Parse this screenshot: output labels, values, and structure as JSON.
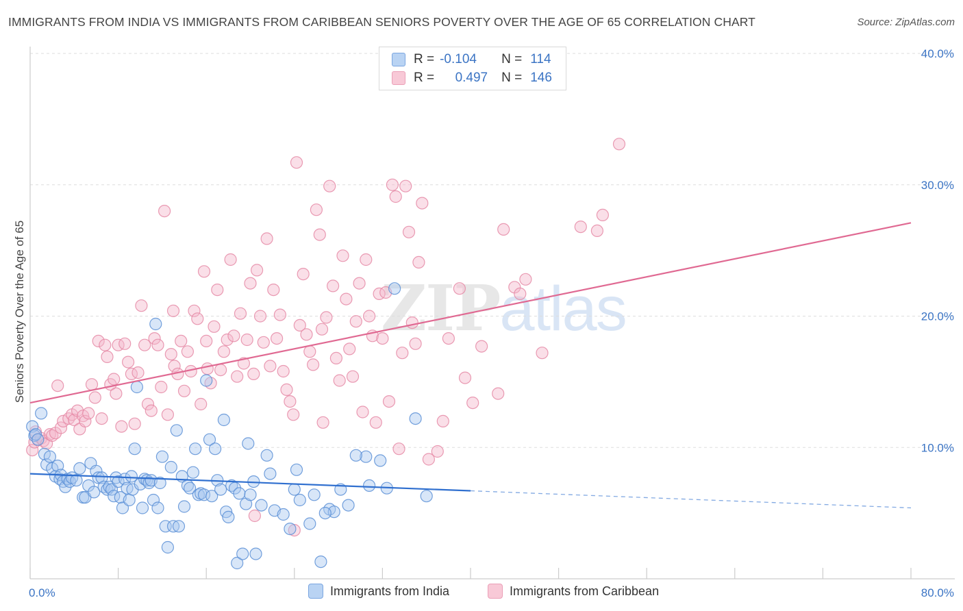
{
  "header": {
    "title": "IMMIGRANTS FROM INDIA VS IMMIGRANTS FROM CARIBBEAN SENIORS POVERTY OVER THE AGE OF 65 CORRELATION CHART",
    "source": "Source: ZipAtlas.com"
  },
  "watermark": {
    "zip": "ZIP",
    "atlas": "atlas"
  },
  "legend": {
    "rows": [
      {
        "r_label": "R =",
        "r_value": "-0.104",
        "n_label": "N =",
        "n_value": "114",
        "color": "#a8c8f0"
      },
      {
        "r_label": "R =",
        "r_value": "0.497",
        "n_label": "N =",
        "n_value": "146",
        "color": "#f5b8cb"
      }
    ]
  },
  "bottom_legend": {
    "india": "Immigrants from India",
    "caribbean": "Immigrants from Caribbean"
  },
  "colors": {
    "india_fill": "#a8c8f0",
    "india_stroke": "#5b8fd6",
    "india_line": "#2f6fcf",
    "carib_fill": "#f5b8cb",
    "carib_stroke": "#e58aa6",
    "carib_line": "#e06992",
    "tick_text": "#3b74c4",
    "grid": "#dddddd"
  },
  "chart_data": {
    "type": "scatter",
    "title": "IMMIGRANTS FROM INDIA VS IMMIGRANTS FROM CARIBBEAN SENIORS POVERTY OVER THE AGE OF 65 CORRELATION CHART",
    "xlabel": "",
    "ylabel": "Seniors Poverty Over the Age of 65",
    "xlim": [
      0,
      80
    ],
    "ylim": [
      0,
      40
    ],
    "x_tick_labels": [
      {
        "value": 0,
        "label": "0.0%"
      },
      {
        "value": 80,
        "label": "80.0%"
      }
    ],
    "y_tick_labels": [
      {
        "value": 10,
        "label": "10.0%"
      },
      {
        "value": 20,
        "label": "20.0%"
      },
      {
        "value": 30,
        "label": "30.0%"
      },
      {
        "value": 40,
        "label": "40.0%"
      }
    ],
    "grid": true,
    "legend_position": "top-center",
    "series": [
      {
        "name": "Immigrants from India",
        "r": -0.104,
        "n": 114,
        "trend": {
          "x0": 0,
          "y0": 8.0,
          "x1": 40,
          "y1": 6.7,
          "dash_x1": 80,
          "dash_y1": 5.4
        },
        "points": [
          [
            0.2,
            11.6
          ],
          [
            0.4,
            10.9
          ],
          [
            0.5,
            11.0
          ],
          [
            0.7,
            10.6
          ],
          [
            1.0,
            12.6
          ],
          [
            1.3,
            9.5
          ],
          [
            1.5,
            8.7
          ],
          [
            1.8,
            9.3
          ],
          [
            2.0,
            8.4
          ],
          [
            2.3,
            7.8
          ],
          [
            2.5,
            8.6
          ],
          [
            2.7,
            7.6
          ],
          [
            2.8,
            7.9
          ],
          [
            3.0,
            7.4
          ],
          [
            3.2,
            7.0
          ],
          [
            3.4,
            7.6
          ],
          [
            3.6,
            7.4
          ],
          [
            3.8,
            7.7
          ],
          [
            4.2,
            7.5
          ],
          [
            4.5,
            8.4
          ],
          [
            4.8,
            6.2
          ],
          [
            5.0,
            6.2
          ],
          [
            5.3,
            7.1
          ],
          [
            5.5,
            8.8
          ],
          [
            5.8,
            6.6
          ],
          [
            6.0,
            8.2
          ],
          [
            6.2,
            7.7
          ],
          [
            6.5,
            7.7
          ],
          [
            6.7,
            7.0
          ],
          [
            7.0,
            6.8
          ],
          [
            7.2,
            7.0
          ],
          [
            7.4,
            6.8
          ],
          [
            7.6,
            6.3
          ],
          [
            7.8,
            7.7
          ],
          [
            8.0,
            7.4
          ],
          [
            8.2,
            6.2
          ],
          [
            8.4,
            5.4
          ],
          [
            8.6,
            7.6
          ],
          [
            8.8,
            6.9
          ],
          [
            9.0,
            6.0
          ],
          [
            9.3,
            6.8
          ],
          [
            9.5,
            9.9
          ],
          [
            9.7,
            14.6
          ],
          [
            10.0,
            7.2
          ],
          [
            10.2,
            5.4
          ],
          [
            10.4,
            7.6
          ],
          [
            10.6,
            7.5
          ],
          [
            10.8,
            7.3
          ],
          [
            11.0,
            7.5
          ],
          [
            11.2,
            6.0
          ],
          [
            11.4,
            19.4
          ],
          [
            11.6,
            5.4
          ],
          [
            11.8,
            7.3
          ],
          [
            12.0,
            9.3
          ],
          [
            12.3,
            4.0
          ],
          [
            12.5,
            2.4
          ],
          [
            12.8,
            8.5
          ],
          [
            13.0,
            4.0
          ],
          [
            13.3,
            11.3
          ],
          [
            13.5,
            4.0
          ],
          [
            13.8,
            7.8
          ],
          [
            14.0,
            5.5
          ],
          [
            14.3,
            7.1
          ],
          [
            14.5,
            6.9
          ],
          [
            14.8,
            8.1
          ],
          [
            15.0,
            9.9
          ],
          [
            15.3,
            6.4
          ],
          [
            15.5,
            6.5
          ],
          [
            15.8,
            6.4
          ],
          [
            16.0,
            15.1
          ],
          [
            16.3,
            10.6
          ],
          [
            16.5,
            6.3
          ],
          [
            16.8,
            9.9
          ],
          [
            17.0,
            7.5
          ],
          [
            17.3,
            6.8
          ],
          [
            17.6,
            12.1
          ],
          [
            17.8,
            5.1
          ],
          [
            18.0,
            4.7
          ],
          [
            18.3,
            7.1
          ],
          [
            18.6,
            6.9
          ],
          [
            18.8,
            1.2
          ],
          [
            19.0,
            6.5
          ],
          [
            19.3,
            1.9
          ],
          [
            19.6,
            5.7
          ],
          [
            20.0,
            6.4
          ],
          [
            20.3,
            7.4
          ],
          [
            20.5,
            1.9
          ],
          [
            21.0,
            5.6
          ],
          [
            21.5,
            9.4
          ],
          [
            22.2,
            5.2
          ],
          [
            23.0,
            4.9
          ],
          [
            23.6,
            3.8
          ],
          [
            24.0,
            6.8
          ],
          [
            24.2,
            8.3
          ],
          [
            24.5,
            6.0
          ],
          [
            25.4,
            4.2
          ],
          [
            25.8,
            6.4
          ],
          [
            26.4,
            1.3
          ],
          [
            27.2,
            5.3
          ],
          [
            27.6,
            5.1
          ],
          [
            28.2,
            6.8
          ],
          [
            28.9,
            5.6
          ],
          [
            30.5,
            9.3
          ],
          [
            30.8,
            7.1
          ],
          [
            31.8,
            9.0
          ],
          [
            32.4,
            6.9
          ],
          [
            33.1,
            22.1
          ],
          [
            35.0,
            12.2
          ],
          [
            36.0,
            6.3
          ],
          [
            26.8,
            5.0
          ],
          [
            29.6,
            9.4
          ],
          [
            21.8,
            8.0
          ],
          [
            19.8,
            10.3
          ],
          [
            9.2,
            7.8
          ]
        ]
      },
      {
        "name": "Immigrants from Caribbean",
        "r": 0.497,
        "n": 146,
        "trend": {
          "x0": 0,
          "y0": 13.4,
          "x1": 80,
          "y1": 27.1
        },
        "points": [
          [
            0.2,
            9.8
          ],
          [
            0.4,
            10.4
          ],
          [
            0.5,
            11.2
          ],
          [
            0.7,
            10.6
          ],
          [
            1.0,
            10.7
          ],
          [
            1.2,
            10.5
          ],
          [
            1.5,
            10.3
          ],
          [
            1.8,
            11.0
          ],
          [
            2.0,
            10.9
          ],
          [
            2.3,
            11.1
          ],
          [
            2.5,
            14.7
          ],
          [
            2.8,
            11.5
          ],
          [
            3.0,
            12.0
          ],
          [
            3.5,
            12.2
          ],
          [
            3.8,
            12.5
          ],
          [
            4.0,
            12.1
          ],
          [
            4.3,
            12.8
          ],
          [
            4.5,
            11.4
          ],
          [
            4.8,
            12.4
          ],
          [
            5.0,
            12.0
          ],
          [
            5.3,
            12.6
          ],
          [
            5.6,
            14.8
          ],
          [
            5.9,
            13.8
          ],
          [
            6.2,
            18.1
          ],
          [
            6.5,
            12.2
          ],
          [
            6.8,
            17.8
          ],
          [
            7.0,
            16.9
          ],
          [
            7.3,
            14.8
          ],
          [
            7.6,
            15.2
          ],
          [
            7.8,
            14.1
          ],
          [
            8.0,
            17.8
          ],
          [
            8.3,
            11.6
          ],
          [
            8.6,
            17.9
          ],
          [
            8.9,
            16.5
          ],
          [
            9.2,
            15.6
          ],
          [
            9.5,
            11.8
          ],
          [
            9.8,
            15.7
          ],
          [
            10.1,
            20.8
          ],
          [
            10.4,
            17.8
          ],
          [
            10.7,
            13.3
          ],
          [
            11.0,
            12.8
          ],
          [
            11.3,
            18.3
          ],
          [
            11.6,
            17.8
          ],
          [
            11.9,
            14.6
          ],
          [
            12.2,
            28.0
          ],
          [
            12.5,
            12.5
          ],
          [
            12.8,
            17.1
          ],
          [
            13.1,
            16.2
          ],
          [
            13.4,
            15.6
          ],
          [
            13.7,
            18.1
          ],
          [
            14.0,
            14.3
          ],
          [
            14.3,
            17.3
          ],
          [
            14.6,
            15.8
          ],
          [
            14.9,
            20.4
          ],
          [
            15.2,
            19.8
          ],
          [
            15.5,
            13.3
          ],
          [
            15.8,
            23.4
          ],
          [
            16.1,
            16.0
          ],
          [
            16.4,
            14.9
          ],
          [
            16.7,
            19.2
          ],
          [
            17.0,
            22.0
          ],
          [
            17.3,
            15.9
          ],
          [
            17.6,
            17.3
          ],
          [
            17.9,
            18.2
          ],
          [
            18.2,
            24.3
          ],
          [
            18.5,
            18.5
          ],
          [
            18.8,
            15.4
          ],
          [
            19.1,
            20.2
          ],
          [
            19.4,
            16.4
          ],
          [
            19.7,
            18.2
          ],
          [
            20.0,
            22.5
          ],
          [
            20.3,
            15.6
          ],
          [
            20.6,
            23.5
          ],
          [
            20.9,
            20.0
          ],
          [
            21.2,
            18.0
          ],
          [
            21.5,
            25.9
          ],
          [
            21.8,
            16.2
          ],
          [
            22.1,
            22.0
          ],
          [
            22.4,
            18.3
          ],
          [
            22.7,
            20.1
          ],
          [
            23.0,
            15.8
          ],
          [
            23.3,
            14.4
          ],
          [
            23.6,
            13.5
          ],
          [
            23.9,
            12.5
          ],
          [
            24.2,
            31.7
          ],
          [
            24.5,
            19.3
          ],
          [
            24.8,
            23.2
          ],
          [
            25.1,
            18.6
          ],
          [
            25.4,
            17.3
          ],
          [
            25.7,
            16.3
          ],
          [
            26.0,
            28.1
          ],
          [
            26.3,
            26.2
          ],
          [
            26.6,
            11.9
          ],
          [
            26.9,
            19.9
          ],
          [
            27.2,
            29.9
          ],
          [
            27.5,
            22.3
          ],
          [
            27.8,
            16.8
          ],
          [
            28.1,
            15.1
          ],
          [
            28.4,
            24.6
          ],
          [
            28.7,
            21.3
          ],
          [
            29.0,
            17.5
          ],
          [
            29.3,
            15.4
          ],
          [
            29.6,
            19.6
          ],
          [
            29.9,
            22.5
          ],
          [
            30.2,
            12.7
          ],
          [
            30.5,
            24.3
          ],
          [
            30.8,
            20.0
          ],
          [
            31.1,
            18.5
          ],
          [
            31.4,
            11.9
          ],
          [
            31.7,
            21.7
          ],
          [
            32.0,
            18.3
          ],
          [
            32.3,
            21.8
          ],
          [
            32.6,
            13.5
          ],
          [
            32.9,
            30.0
          ],
          [
            33.2,
            29.1
          ],
          [
            33.5,
            9.9
          ],
          [
            33.8,
            17.2
          ],
          [
            34.1,
            29.9
          ],
          [
            34.4,
            26.4
          ],
          [
            34.7,
            19.5
          ],
          [
            35.0,
            17.9
          ],
          [
            35.3,
            24.1
          ],
          [
            35.6,
            28.6
          ],
          [
            36.2,
            9.1
          ],
          [
            37.0,
            9.7
          ],
          [
            37.5,
            12.0
          ],
          [
            38.0,
            18.3
          ],
          [
            39.0,
            22.1
          ],
          [
            39.5,
            15.3
          ],
          [
            40.2,
            13.4
          ],
          [
            41.0,
            17.7
          ],
          [
            42.5,
            14.1
          ],
          [
            43.0,
            26.6
          ],
          [
            44.0,
            22.2
          ],
          [
            44.5,
            21.7
          ],
          [
            45.0,
            22.8
          ],
          [
            46.5,
            17.2
          ],
          [
            50.0,
            26.8
          ],
          [
            52.0,
            27.7
          ],
          [
            53.5,
            33.1
          ],
          [
            20.4,
            4.8
          ],
          [
            24.0,
            3.7
          ],
          [
            16.0,
            18.1
          ],
          [
            26.5,
            19.0
          ],
          [
            13.0,
            20.4
          ],
          [
            51.5,
            26.5
          ]
        ]
      }
    ]
  },
  "axis": {
    "ylabel": "Seniors Poverty Over the Age of 65",
    "x_left": "0.0%",
    "x_right": "80.0%",
    "y_ticks": [
      "10.0%",
      "20.0%",
      "30.0%",
      "40.0%"
    ]
  }
}
